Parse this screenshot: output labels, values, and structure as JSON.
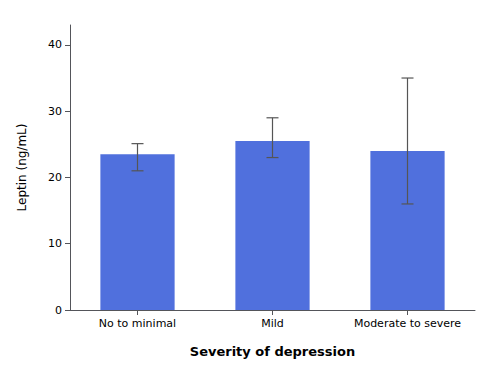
{
  "chart_data": {
    "type": "bar",
    "categories": [
      "No to minimal",
      "Mild",
      "Moderate to severe"
    ],
    "values": [
      23.5,
      25.5,
      24.0
    ],
    "error_lower": [
      2.5,
      2.5,
      8.0
    ],
    "error_upper": [
      1.6,
      3.5,
      11.0
    ],
    "xlabel": "Severity of depression",
    "ylabel": "Leptin (ng/mL)",
    "ylim": [
      0,
      43
    ],
    "yticks": [
      0,
      10,
      20,
      30,
      40
    ],
    "grid": false
  }
}
